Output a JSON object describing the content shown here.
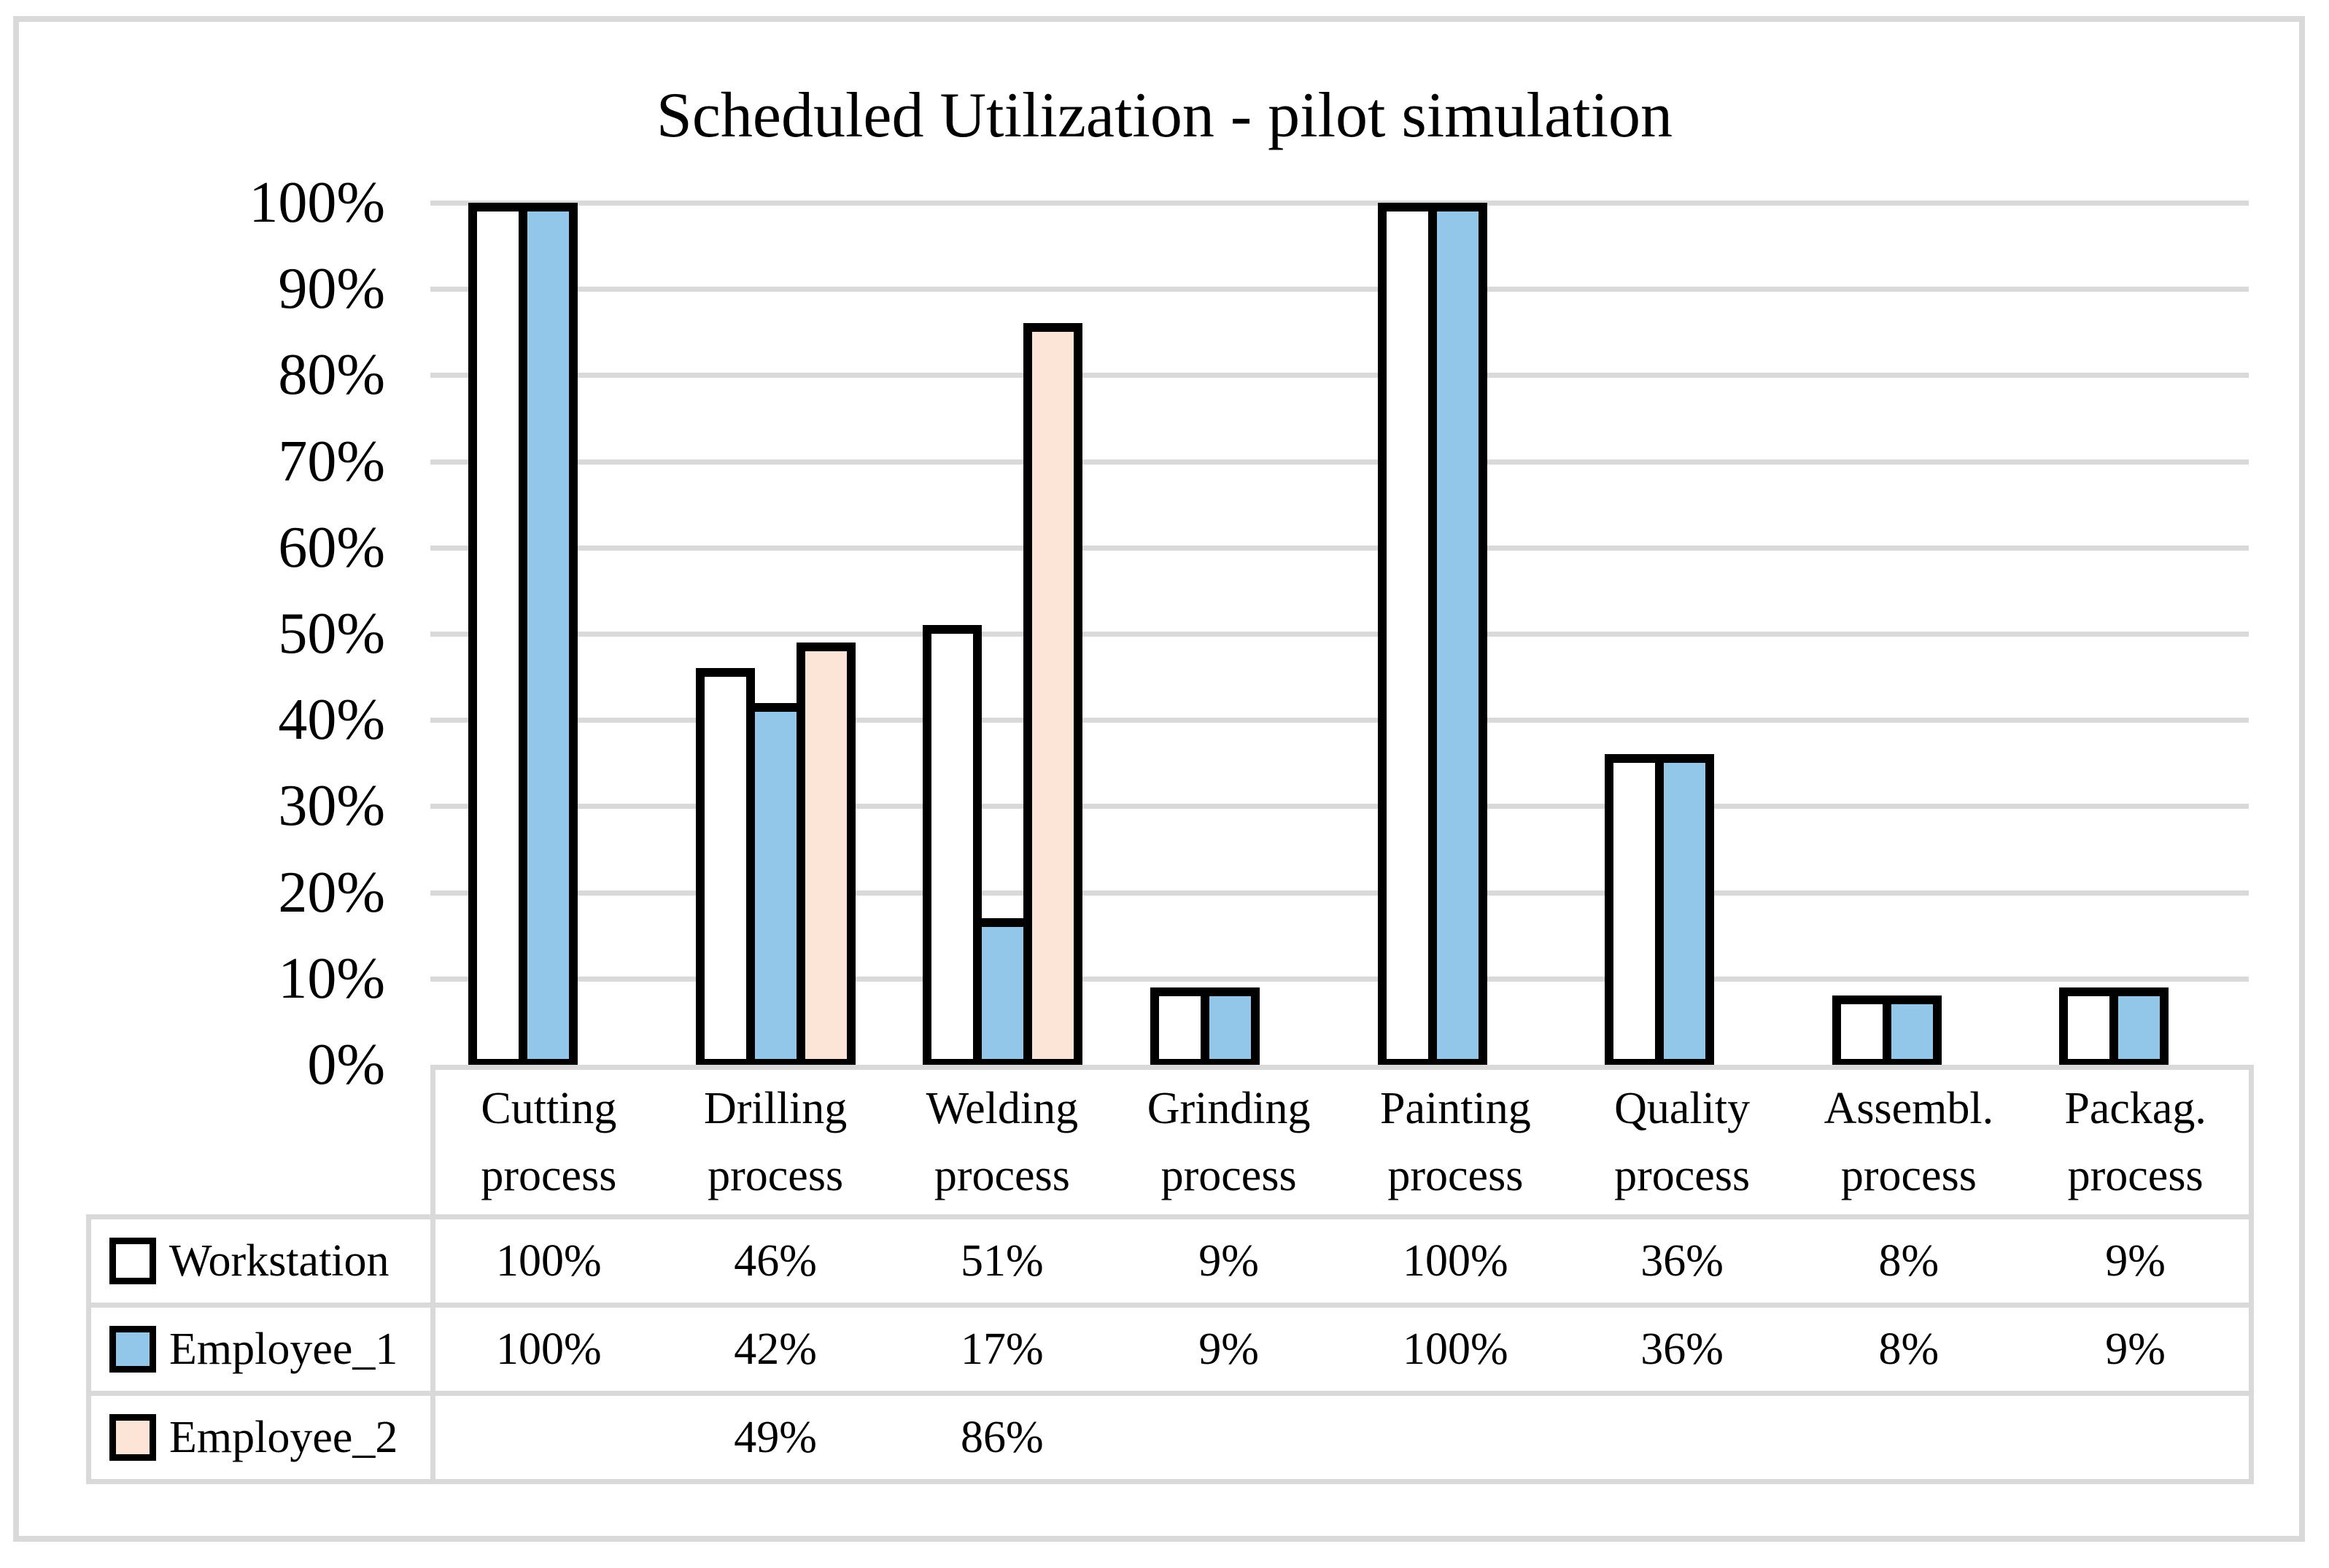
{
  "figure": {
    "title": "Scheduled Utilization - pilot simulation",
    "colors": {
      "frame_border": "#D9D9D9",
      "gridline": "#D9D9D9",
      "table_border": "#D9D9D9",
      "bar_border": "#000000",
      "workstation_fill": "#FFFFFF",
      "employee1_fill": "#92C7EA",
      "employee2_fill": "#FCE4D6",
      "text": "#000000"
    }
  },
  "y_axis": {
    "tick_labels": [
      "100%",
      "90%",
      "80%",
      "70%",
      "60%",
      "50%",
      "40%",
      "30%",
      "20%",
      "10%",
      "0%"
    ],
    "min": 0,
    "max": 100,
    "step": 10
  },
  "chart_data": {
    "type": "bar",
    "title": "Scheduled Utilization - pilot simulation",
    "categories": [
      "Cutting process",
      "Drilling process",
      "Welding process",
      "Grinding process",
      "Painting process",
      "Quality process",
      "Assembl. process",
      "Packag. process"
    ],
    "category_lines": [
      [
        "Cutting",
        "process"
      ],
      [
        "Drilling",
        "process"
      ],
      [
        "Welding",
        "process"
      ],
      [
        "Grinding",
        "process"
      ],
      [
        "Painting",
        "process"
      ],
      [
        "Quality",
        "process"
      ],
      [
        "Assembl.",
        "process"
      ],
      [
        "Packag.",
        "process"
      ]
    ],
    "series": [
      {
        "name": "Workstation",
        "fill": "#FFFFFF",
        "values": [
          100,
          46,
          51,
          9,
          100,
          36,
          8,
          9
        ]
      },
      {
        "name": "Employee_1",
        "fill": "#92C7EA",
        "values": [
          100,
          42,
          17,
          9,
          100,
          36,
          8,
          9
        ]
      },
      {
        "name": "Employee_2",
        "fill": "#FCE4D6",
        "values": [
          null,
          49,
          86,
          null,
          null,
          null,
          null,
          null
        ]
      }
    ],
    "ylim": [
      0,
      100
    ],
    "grid": true,
    "legend_position": "data-table-left"
  },
  "data_table": {
    "rows": [
      {
        "label": "Workstation",
        "swatch_fill": "#FFFFFF",
        "cells": [
          "100%",
          "46%",
          "51%",
          "9%",
          "100%",
          "36%",
          "8%",
          "9%"
        ]
      },
      {
        "label": "Employee_1",
        "swatch_fill": "#92C7EA",
        "cells": [
          "100%",
          "42%",
          "17%",
          "9%",
          "100%",
          "36%",
          "8%",
          "9%"
        ]
      },
      {
        "label": "Employee_2",
        "swatch_fill": "#FCE4D6",
        "cells": [
          "",
          "49%",
          "86%",
          "",
          "",
          "",
          "",
          ""
        ]
      }
    ]
  }
}
